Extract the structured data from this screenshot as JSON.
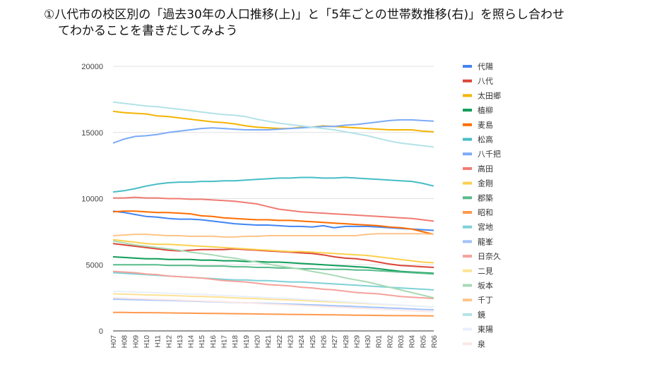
{
  "question": {
    "line1": "①八代市の校区別の「過去30年の人口推移(上)」と「5年ごとの世帯数推移(右)」を照らし合わせ",
    "line2": "てわかることを書きだしてみよう"
  },
  "chart_data": {
    "type": "line",
    "title": "",
    "xlabel": "",
    "ylabel": "",
    "ylim": [
      0,
      20000
    ],
    "yticks": [
      "0",
      "5000",
      "10000",
      "15000",
      "20000"
    ],
    "grid": true,
    "legend_position": "right",
    "categories": [
      "H07",
      "H08",
      "H09",
      "H10",
      "H11",
      "H12",
      "H13",
      "H14",
      "H15",
      "H16",
      "H17",
      "H18",
      "H19",
      "H20",
      "H21",
      "H22",
      "H23",
      "H24",
      "H25",
      "H26",
      "H27",
      "H28",
      "H29",
      "H30",
      "R01",
      "R02",
      "R03",
      "R04",
      "R05",
      "R06"
    ],
    "series": [
      {
        "name": "代陽",
        "color": "#4285f4",
        "values": [
          9050,
          8950,
          8800,
          8650,
          8600,
          8500,
          8450,
          8450,
          8400,
          8300,
          8200,
          8100,
          8050,
          8000,
          8000,
          7950,
          7900,
          7900,
          7850,
          7950,
          7800,
          7900,
          7900,
          7900,
          7850,
          7800,
          7750,
          7700,
          7650,
          7600
        ]
      },
      {
        "name": "八代",
        "color": "#db4437",
        "values": [
          6600,
          6500,
          6400,
          6300,
          6200,
          6100,
          6050,
          6100,
          6150,
          6150,
          6150,
          6200,
          6150,
          6100,
          6050,
          6000,
          5950,
          5900,
          5850,
          5750,
          5600,
          5500,
          5450,
          5350,
          5200,
          5050,
          4950,
          4900,
          4850,
          4800
        ]
      },
      {
        "name": "太田郷",
        "color": "#f4b400",
        "values": [
          16600,
          16500,
          16450,
          16400,
          16250,
          16200,
          16100,
          16000,
          15900,
          15800,
          15750,
          15650,
          15500,
          15400,
          15350,
          15300,
          15300,
          15400,
          15400,
          15500,
          15450,
          15400,
          15350,
          15300,
          15250,
          15200,
          15200,
          15200,
          15100,
          15050
        ]
      },
      {
        "name": "植柳",
        "color": "#0f9d58",
        "values": [
          5600,
          5550,
          5500,
          5450,
          5450,
          5400,
          5400,
          5400,
          5350,
          5350,
          5300,
          5300,
          5250,
          5250,
          5200,
          5200,
          5150,
          5100,
          5050,
          5000,
          4950,
          4900,
          4850,
          4800,
          4700,
          4600,
          4500,
          4450,
          4400,
          4350
        ]
      },
      {
        "name": "麦島",
        "color": "#ff6d00",
        "values": [
          9000,
          9050,
          9050,
          9000,
          8950,
          8950,
          8900,
          8850,
          8700,
          8650,
          8550,
          8500,
          8450,
          8400,
          8400,
          8350,
          8350,
          8300,
          8250,
          8200,
          8150,
          8100,
          8050,
          8000,
          7950,
          7850,
          7800,
          7700,
          7500,
          7300
        ]
      },
      {
        "name": "松高",
        "color": "#46bdc6",
        "values": [
          10500,
          10600,
          10750,
          10950,
          11100,
          11200,
          11250,
          11250,
          11300,
          11300,
          11350,
          11350,
          11400,
          11450,
          11500,
          11550,
          11550,
          11600,
          11600,
          11550,
          11550,
          11600,
          11550,
          11500,
          11450,
          11400,
          11350,
          11300,
          11150,
          10950
        ]
      },
      {
        "name": "八千把",
        "color": "#7baaf7",
        "values": [
          14200,
          14500,
          14700,
          14750,
          14850,
          15000,
          15100,
          15200,
          15300,
          15350,
          15300,
          15250,
          15200,
          15200,
          15200,
          15250,
          15300,
          15350,
          15400,
          15450,
          15450,
          15550,
          15600,
          15700,
          15800,
          15900,
          15950,
          15950,
          15900,
          15850
        ]
      },
      {
        "name": "高田",
        "color": "#f07b72",
        "values": [
          10050,
          10050,
          10100,
          10050,
          10050,
          10000,
          10000,
          9950,
          9950,
          9900,
          9850,
          9800,
          9700,
          9600,
          9400,
          9200,
          9100,
          9000,
          8950,
          8900,
          8850,
          8800,
          8750,
          8700,
          8650,
          8600,
          8550,
          8500,
          8400,
          8300
        ]
      },
      {
        "name": "金剛",
        "color": "#fcd04f",
        "values": [
          6900,
          6800,
          6700,
          6600,
          6550,
          6550,
          6500,
          6450,
          6400,
          6350,
          6300,
          6250,
          6200,
          6150,
          6100,
          6050,
          6000,
          6000,
          5950,
          5900,
          5850,
          5800,
          5750,
          5700,
          5600,
          5500,
          5400,
          5300,
          5200,
          5150
        ]
      },
      {
        "name": "郡築",
        "color": "#57bb8a",
        "values": [
          5000,
          5000,
          5000,
          5000,
          5000,
          4950,
          4950,
          4950,
          4900,
          4900,
          4900,
          4850,
          4850,
          4800,
          4800,
          4750,
          4750,
          4700,
          4700,
          4650,
          4650,
          4650,
          4600,
          4600,
          4550,
          4500,
          4450,
          4400,
          4350,
          4300
        ]
      },
      {
        "name": "昭和",
        "color": "#ff994d",
        "values": [
          1400,
          1400,
          1380,
          1380,
          1370,
          1360,
          1350,
          1340,
          1330,
          1320,
          1310,
          1300,
          1290,
          1280,
          1270,
          1260,
          1250,
          1240,
          1230,
          1220,
          1210,
          1200,
          1190,
          1180,
          1170,
          1160,
          1150,
          1150,
          1140,
          1130
        ]
      },
      {
        "name": "宮地",
        "color": "#7ed1d7",
        "values": [
          4400,
          4350,
          4300,
          4250,
          4200,
          4150,
          4100,
          4050,
          4000,
          3950,
          3900,
          3850,
          3850,
          3800,
          3800,
          3750,
          3700,
          3700,
          3650,
          3600,
          3550,
          3500,
          3450,
          3400,
          3350,
          3300,
          3250,
          3200,
          3150,
          3100
        ]
      },
      {
        "name": "龍峯",
        "color": "#a1c2fa",
        "values": [
          2400,
          2380,
          2360,
          2340,
          2320,
          2300,
          2280,
          2250,
          2230,
          2200,
          2180,
          2150,
          2120,
          2100,
          2080,
          2050,
          2020,
          2000,
          1970,
          1940,
          1900,
          1870,
          1840,
          1800,
          1770,
          1730,
          1700,
          1660,
          1620,
          1600
        ]
      },
      {
        "name": "日奈久",
        "color": "#f5a29b",
        "values": [
          4500,
          4450,
          4400,
          4300,
          4250,
          4150,
          4100,
          4050,
          4000,
          3900,
          3800,
          3750,
          3700,
          3600,
          3500,
          3450,
          3400,
          3300,
          3250,
          3150,
          3100,
          3000,
          2900,
          2850,
          2800,
          2700,
          2600,
          2550,
          2500,
          2450
        ]
      },
      {
        "name": "二見",
        "color": "#fde293",
        "values": [
          2800,
          2780,
          2750,
          2720,
          2700,
          2680,
          2650,
          2620,
          2600,
          2570,
          2540,
          2500,
          2470,
          2440,
          2400,
          2370,
          2340,
          2300,
          2260,
          2220,
          2180,
          2150,
          2100,
          2060,
          2020,
          1980,
          1940,
          1900,
          1850,
          1800
        ]
      },
      {
        "name": "坂本",
        "color": "#a8dab5",
        "values": [
          6800,
          6650,
          6500,
          6400,
          6300,
          6200,
          6100,
          5950,
          5850,
          5750,
          5600,
          5500,
          5350,
          5200,
          5050,
          4900,
          4800,
          4650,
          4500,
          4350,
          4200,
          4000,
          3850,
          3700,
          3500,
          3300,
          3100,
          2900,
          2700,
          2500
        ]
      },
      {
        "name": "千丁",
        "color": "#ffc48a",
        "values": [
          7200,
          7250,
          7300,
          7300,
          7250,
          7200,
          7200,
          7150,
          7150,
          7150,
          7100,
          7100,
          7150,
          7150,
          7200,
          7200,
          7200,
          7200,
          7200,
          7200,
          7200,
          7200,
          7200,
          7300,
          7350,
          7350,
          7350,
          7350,
          7350,
          7300
        ]
      },
      {
        "name": "鏡",
        "color": "#b2e3e7",
        "values": [
          17300,
          17200,
          17100,
          17000,
          16950,
          16850,
          16750,
          16650,
          16550,
          16450,
          16350,
          16300,
          16200,
          16000,
          15850,
          15700,
          15600,
          15500,
          15400,
          15300,
          15200,
          15050,
          14900,
          14750,
          14550,
          14350,
          14200,
          14100,
          14000,
          13900
        ]
      },
      {
        "name": "東陽",
        "color": "#e8f0fe",
        "values": [
          3000,
          2970,
          2940,
          2910,
          2880,
          2850,
          2820,
          2780,
          2750,
          2720,
          2680,
          2640,
          2600,
          2560,
          2520,
          2480,
          2440,
          2400,
          2350,
          2300,
          2250,
          2200,
          2150,
          2100,
          2050,
          2000,
          1950,
          1900,
          1850,
          1800
        ]
      },
      {
        "name": "泉",
        "color": "#fce8e6",
        "values": [
          2500,
          2470,
          2440,
          2410,
          2380,
          2350,
          2320,
          2290,
          2260,
          2230,
          2200,
          2160,
          2120,
          2080,
          2040,
          2000,
          1960,
          1920,
          1880,
          1840,
          1800,
          1760,
          1720,
          1680,
          1640,
          1600,
          1560,
          1520,
          1480,
          1440
        ]
      }
    ]
  }
}
